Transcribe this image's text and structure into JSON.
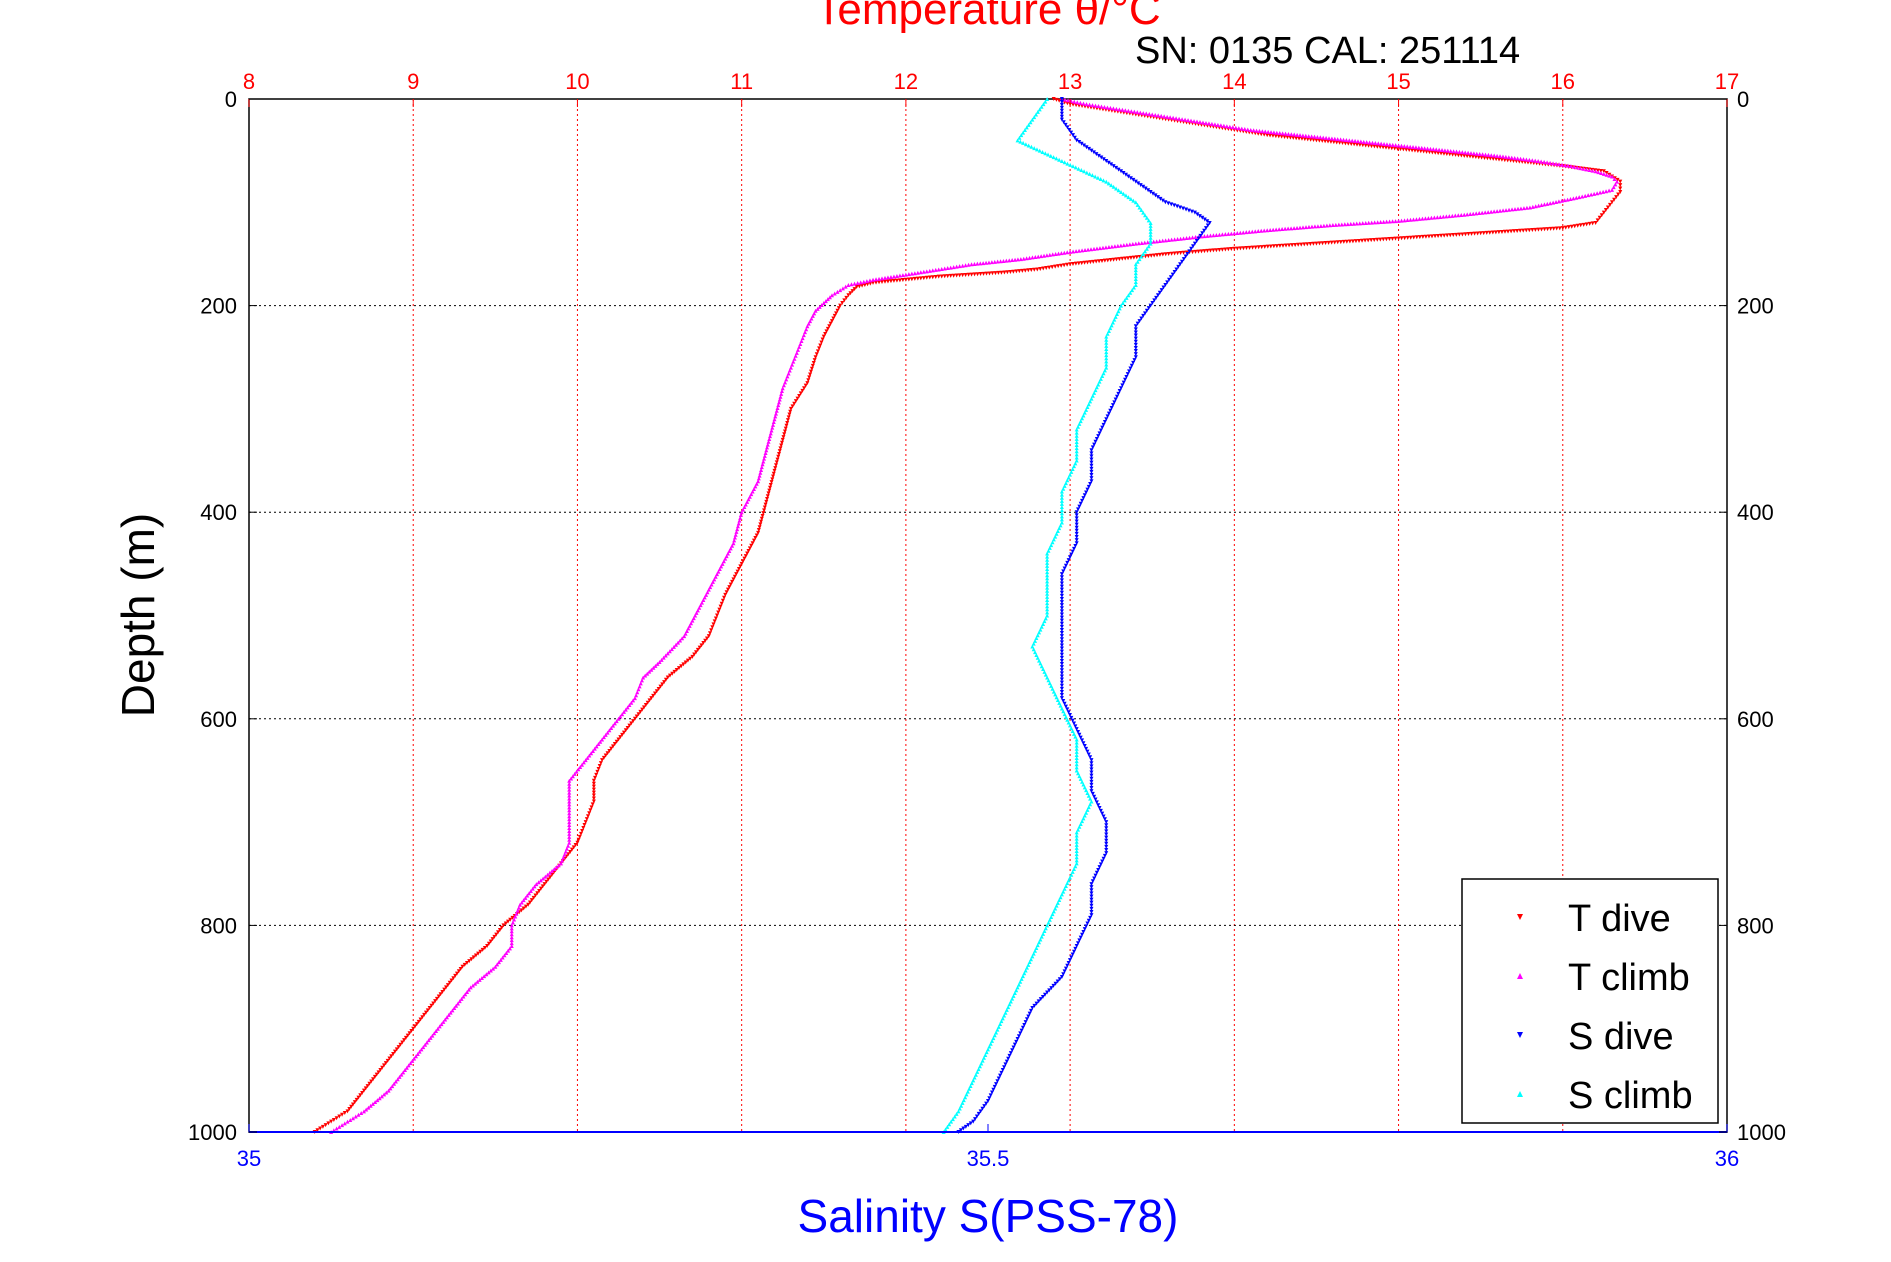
{
  "chart_data": {
    "type": "scatter",
    "title": "Temperature θ/°C",
    "subtitle": "SN: 0135  CAL: 251114",
    "ylabel": "Depth (m)",
    "xlabel_bottom": "Salinity S(PSS-78)",
    "xlabel_top": "Temperature θ/°C",
    "y_range": [
      0,
      1000
    ],
    "y_reversed": true,
    "y_ticks": [
      "0",
      "200",
      "400",
      "600",
      "800",
      "1000"
    ],
    "y_tick_values": [
      0,
      200,
      400,
      600,
      800,
      1000
    ],
    "x_top_range": [
      8,
      17
    ],
    "x_top_ticks": [
      "8",
      "9",
      "10",
      "11",
      "12",
      "13",
      "14",
      "15",
      "16",
      "17"
    ],
    "x_top_tick_values": [
      8,
      9,
      10,
      11,
      12,
      13,
      14,
      15,
      16,
      17
    ],
    "x_bottom_range": [
      35,
      36
    ],
    "x_bottom_ticks": [
      "35",
      "35.5",
      "36"
    ],
    "x_bottom_tick_values": [
      35,
      35.5,
      36
    ],
    "grid": true,
    "legend_position": "bottom-right",
    "colors": {
      "temperature": "#ff0000",
      "salinity": "#0000ff",
      "grid_temperature": "#ff0000",
      "grid_depth": "#000000",
      "text": "#000000"
    },
    "series": [
      {
        "name": "T dive",
        "axis": "temperature",
        "marker": "triangle-down",
        "color": "#ff0000",
        "points": [
          [
            12.9,
            0
          ],
          [
            13.0,
            5
          ],
          [
            13.2,
            10
          ],
          [
            13.4,
            15
          ],
          [
            13.6,
            20
          ],
          [
            13.8,
            25
          ],
          [
            14.0,
            30
          ],
          [
            14.2,
            35
          ],
          [
            14.5,
            40
          ],
          [
            14.8,
            45
          ],
          [
            15.1,
            50
          ],
          [
            15.4,
            55
          ],
          [
            15.7,
            60
          ],
          [
            16.0,
            65
          ],
          [
            16.25,
            70
          ],
          [
            16.3,
            75
          ],
          [
            16.35,
            80
          ],
          [
            16.35,
            90
          ],
          [
            16.3,
            100
          ],
          [
            16.25,
            110
          ],
          [
            16.2,
            120
          ],
          [
            16.0,
            125
          ],
          [
            15.5,
            130
          ],
          [
            15.0,
            135
          ],
          [
            14.5,
            140
          ],
          [
            14.0,
            145
          ],
          [
            13.6,
            150
          ],
          [
            13.3,
            155
          ],
          [
            13.0,
            160
          ],
          [
            12.8,
            165
          ],
          [
            12.6,
            168
          ],
          [
            12.4,
            170
          ],
          [
            12.2,
            172
          ],
          [
            12.0,
            175
          ],
          [
            11.8,
            178
          ],
          [
            11.7,
            182
          ],
          [
            11.65,
            190
          ],
          [
            11.6,
            200
          ],
          [
            11.55,
            215
          ],
          [
            11.5,
            230
          ],
          [
            11.45,
            250
          ],
          [
            11.4,
            275
          ],
          [
            11.3,
            300
          ],
          [
            11.25,
            330
          ],
          [
            11.2,
            360
          ],
          [
            11.15,
            390
          ],
          [
            11.1,
            420
          ],
          [
            11.0,
            450
          ],
          [
            10.9,
            480
          ],
          [
            10.85,
            500
          ],
          [
            10.8,
            520
          ],
          [
            10.7,
            540
          ],
          [
            10.55,
            560
          ],
          [
            10.45,
            580
          ],
          [
            10.35,
            600
          ],
          [
            10.25,
            620
          ],
          [
            10.15,
            640
          ],
          [
            10.1,
            660
          ],
          [
            10.1,
            680
          ],
          [
            10.05,
            700
          ],
          [
            10.0,
            720
          ],
          [
            9.9,
            740
          ],
          [
            9.8,
            760
          ],
          [
            9.7,
            780
          ],
          [
            9.55,
            800
          ],
          [
            9.45,
            820
          ],
          [
            9.3,
            840
          ],
          [
            9.2,
            860
          ],
          [
            9.1,
            880
          ],
          [
            9.0,
            900
          ],
          [
            8.9,
            920
          ],
          [
            8.8,
            940
          ],
          [
            8.7,
            960
          ],
          [
            8.6,
            980
          ],
          [
            8.5,
            990
          ],
          [
            8.4,
            1000
          ]
        ]
      },
      {
        "name": "T climb",
        "axis": "temperature",
        "marker": "triangle-up",
        "color": "#ff00ff",
        "points": [
          [
            12.95,
            0
          ],
          [
            13.1,
            5
          ],
          [
            13.3,
            10
          ],
          [
            13.5,
            15
          ],
          [
            13.7,
            20
          ],
          [
            13.9,
            25
          ],
          [
            14.1,
            30
          ],
          [
            14.4,
            35
          ],
          [
            14.7,
            40
          ],
          [
            15.0,
            45
          ],
          [
            15.3,
            50
          ],
          [
            15.6,
            55
          ],
          [
            15.85,
            60
          ],
          [
            16.05,
            65
          ],
          [
            16.2,
            70
          ],
          [
            16.3,
            75
          ],
          [
            16.33,
            80
          ],
          [
            16.3,
            88
          ],
          [
            16.1,
            95
          ],
          [
            15.8,
            105
          ],
          [
            15.4,
            112
          ],
          [
            15.0,
            118
          ],
          [
            14.6,
            122
          ],
          [
            14.2,
            127
          ],
          [
            13.8,
            133
          ],
          [
            13.4,
            140
          ],
          [
            13.0,
            148
          ],
          [
            12.7,
            155
          ],
          [
            12.4,
            160
          ],
          [
            12.2,
            165
          ],
          [
            12.0,
            170
          ],
          [
            11.8,
            175
          ],
          [
            11.65,
            180
          ],
          [
            11.55,
            190
          ],
          [
            11.45,
            205
          ],
          [
            11.4,
            220
          ],
          [
            11.35,
            240
          ],
          [
            11.3,
            260
          ],
          [
            11.25,
            280
          ],
          [
            11.2,
            310
          ],
          [
            11.15,
            340
          ],
          [
            11.1,
            370
          ],
          [
            11.0,
            400
          ],
          [
            10.95,
            430
          ],
          [
            10.85,
            460
          ],
          [
            10.75,
            490
          ],
          [
            10.65,
            520
          ],
          [
            10.5,
            545
          ],
          [
            10.4,
            560
          ],
          [
            10.35,
            580
          ],
          [
            10.25,
            600
          ],
          [
            10.15,
            620
          ],
          [
            10.05,
            640
          ],
          [
            9.95,
            660
          ],
          [
            9.95,
            680
          ],
          [
            9.95,
            700
          ],
          [
            9.95,
            720
          ],
          [
            9.9,
            740
          ],
          [
            9.75,
            760
          ],
          [
            9.65,
            780
          ],
          [
            9.6,
            800
          ],
          [
            9.6,
            820
          ],
          [
            9.5,
            840
          ],
          [
            9.35,
            860
          ],
          [
            9.25,
            880
          ],
          [
            9.15,
            900
          ],
          [
            9.05,
            920
          ],
          [
            8.95,
            940
          ],
          [
            8.85,
            960
          ],
          [
            8.7,
            980
          ],
          [
            8.6,
            990
          ],
          [
            8.5,
            1000
          ]
        ]
      },
      {
        "name": "S dive",
        "axis": "salinity",
        "marker": "triangle-down",
        "color": "#0000ff",
        "points": [
          [
            35.55,
            0
          ],
          [
            35.55,
            20
          ],
          [
            35.56,
            40
          ],
          [
            35.58,
            60
          ],
          [
            35.6,
            80
          ],
          [
            35.62,
            100
          ],
          [
            35.64,
            110
          ],
          [
            35.65,
            120
          ],
          [
            35.64,
            140
          ],
          [
            35.63,
            160
          ],
          [
            35.62,
            180
          ],
          [
            35.61,
            200
          ],
          [
            35.6,
            220
          ],
          [
            35.6,
            250
          ],
          [
            35.59,
            280
          ],
          [
            35.58,
            310
          ],
          [
            35.57,
            340
          ],
          [
            35.57,
            370
          ],
          [
            35.56,
            400
          ],
          [
            35.56,
            430
          ],
          [
            35.55,
            460
          ],
          [
            35.55,
            490
          ],
          [
            35.55,
            520
          ],
          [
            35.55,
            550
          ],
          [
            35.55,
            580
          ],
          [
            35.56,
            610
          ],
          [
            35.57,
            640
          ],
          [
            35.57,
            670
          ],
          [
            35.58,
            700
          ],
          [
            35.58,
            730
          ],
          [
            35.57,
            760
          ],
          [
            35.57,
            790
          ],
          [
            35.56,
            820
          ],
          [
            35.55,
            850
          ],
          [
            35.53,
            880
          ],
          [
            35.52,
            910
          ],
          [
            35.51,
            940
          ],
          [
            35.5,
            970
          ],
          [
            35.49,
            990
          ],
          [
            35.48,
            1000
          ]
        ]
      },
      {
        "name": "S climb",
        "axis": "salinity",
        "marker": "triangle-up",
        "color": "#00ffff",
        "points": [
          [
            35.54,
            0
          ],
          [
            35.53,
            20
          ],
          [
            35.52,
            40
          ],
          [
            35.55,
            60
          ],
          [
            35.58,
            80
          ],
          [
            35.6,
            100
          ],
          [
            35.61,
            120
          ],
          [
            35.61,
            140
          ],
          [
            35.6,
            160
          ],
          [
            35.6,
            180
          ],
          [
            35.59,
            200
          ],
          [
            35.58,
            230
          ],
          [
            35.58,
            260
          ],
          [
            35.57,
            290
          ],
          [
            35.56,
            320
          ],
          [
            35.56,
            350
          ],
          [
            35.55,
            380
          ],
          [
            35.55,
            410
          ],
          [
            35.54,
            440
          ],
          [
            35.54,
            470
          ],
          [
            35.54,
            500
          ],
          [
            35.53,
            530
          ],
          [
            35.54,
            560
          ],
          [
            35.55,
            590
          ],
          [
            35.56,
            620
          ],
          [
            35.56,
            650
          ],
          [
            35.57,
            680
          ],
          [
            35.56,
            710
          ],
          [
            35.56,
            740
          ],
          [
            35.55,
            770
          ],
          [
            35.54,
            800
          ],
          [
            35.53,
            830
          ],
          [
            35.52,
            860
          ],
          [
            35.51,
            890
          ],
          [
            35.5,
            920
          ],
          [
            35.49,
            950
          ],
          [
            35.48,
            980
          ],
          [
            35.47,
            1000
          ]
        ]
      }
    ]
  }
}
